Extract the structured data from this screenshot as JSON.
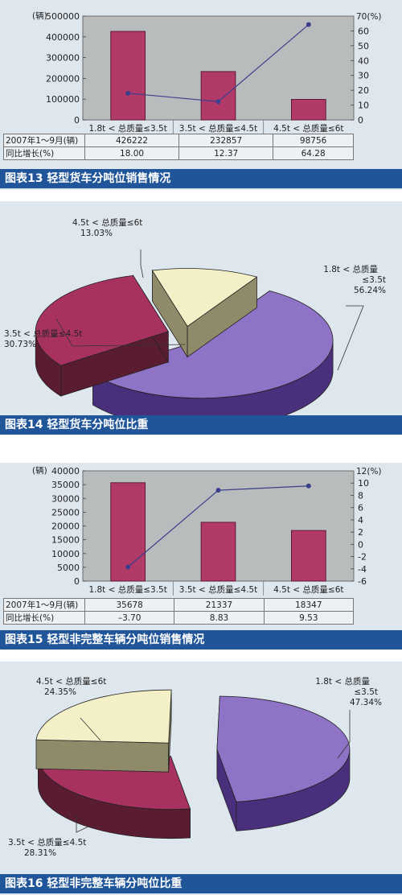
{
  "colors": {
    "panel_bg": "#dfe7ee",
    "plot_bg": "#b9bcbc",
    "bar": "#b23a68",
    "bar_edge": "#5c1832",
    "line": "#3c3f8c",
    "caption_bg": "#20559a",
    "caption_text": "#ffffff",
    "pie_purple": "#8e73c6",
    "pie_purple_side": "#4a2f7c",
    "pie_magenta": "#a8325f",
    "pie_magenta_side": "#5a1c30",
    "pie_yellow": "#f3f0c8",
    "pie_yellow_side": "#8f8b6a"
  },
  "chart_data": [
    {
      "type": "bar",
      "caption": "图表13 轻型货车分吨位销售情况",
      "y_unit_left": "(辆)",
      "y_unit_right": "70(%)",
      "yticks_left": [
        "500000",
        "400000",
        "300000",
        "200000",
        "100000",
        "0"
      ],
      "yticks_right": [
        "60",
        "50",
        "40",
        "30",
        "20",
        "10",
        "0"
      ],
      "ylim": [
        0,
        500000
      ],
      "ylim_right": [
        0,
        70
      ],
      "categories": [
        "1.8t < 总质量≤3.5t",
        "3.5t < 总质量≤4.5t",
        "4.5t < 总质量≤6t"
      ],
      "series": [
        {
          "name": "2007年1～9月(辆)",
          "values": [
            426222,
            232857,
            98756
          ],
          "display": [
            "426222",
            "232857",
            "98756"
          ]
        },
        {
          "name": "同比增长(%)",
          "values": [
            18.0,
            12.37,
            64.28
          ],
          "display": [
            "18.00",
            "12.37",
            "64.28"
          ]
        }
      ]
    },
    {
      "type": "pie",
      "caption": "图表14 轻型货车分吨位比重",
      "slices": [
        {
          "name": "1.8t < 总质量",
          "name2": "≤3.5t",
          "pct": "56.24%",
          "value": 56.24
        },
        {
          "name": "3.5t < 总质量≤4.5t",
          "pct": "30.73%",
          "value": 30.73
        },
        {
          "name": "4.5t < 总质量≤6t",
          "pct": "13.03%",
          "value": 13.03
        }
      ]
    },
    {
      "type": "bar",
      "caption": "图表15 轻型非完整车辆分吨位销售情况",
      "y_unit_left": "(辆)",
      "y_unit_right": "12(%)",
      "yticks_left": [
        "40000",
        "35000",
        "30000",
        "25000",
        "20000",
        "15000",
        "10000",
        "5000",
        "0"
      ],
      "yticks_right": [
        "10",
        "8",
        "6",
        "4",
        "2",
        "0",
        "-2",
        "-4",
        "-6"
      ],
      "ylim": [
        0,
        40000
      ],
      "ylim_right": [
        -6,
        12
      ],
      "categories": [
        "1.8t < 总质量≤3.5t",
        "3.5t < 总质量≤4.5t",
        "4.5t < 总质量≤6t"
      ],
      "series": [
        {
          "name": "2007年1～9月(辆)",
          "values": [
            35678,
            21337,
            18347
          ],
          "display": [
            "35678",
            "21337",
            "18347"
          ]
        },
        {
          "name": "同比增长(%)",
          "values": [
            -3.7,
            8.83,
            9.53
          ],
          "display": [
            "–3.70",
            "8.83",
            "9.53"
          ]
        }
      ]
    },
    {
      "type": "pie",
      "caption": "图表16 轻型非完整车辆分吨位比重",
      "slices": [
        {
          "name": "1.8t < 总质量",
          "name2": "≤3.5t",
          "pct": "47.34%",
          "value": 47.34
        },
        {
          "name": "3.5t < 总质量≤4.5t",
          "pct": "28.31%",
          "value": 28.31
        },
        {
          "name": "4.5t < 总质量≤6t",
          "pct": "24.35%",
          "value": 24.35
        }
      ]
    }
  ]
}
